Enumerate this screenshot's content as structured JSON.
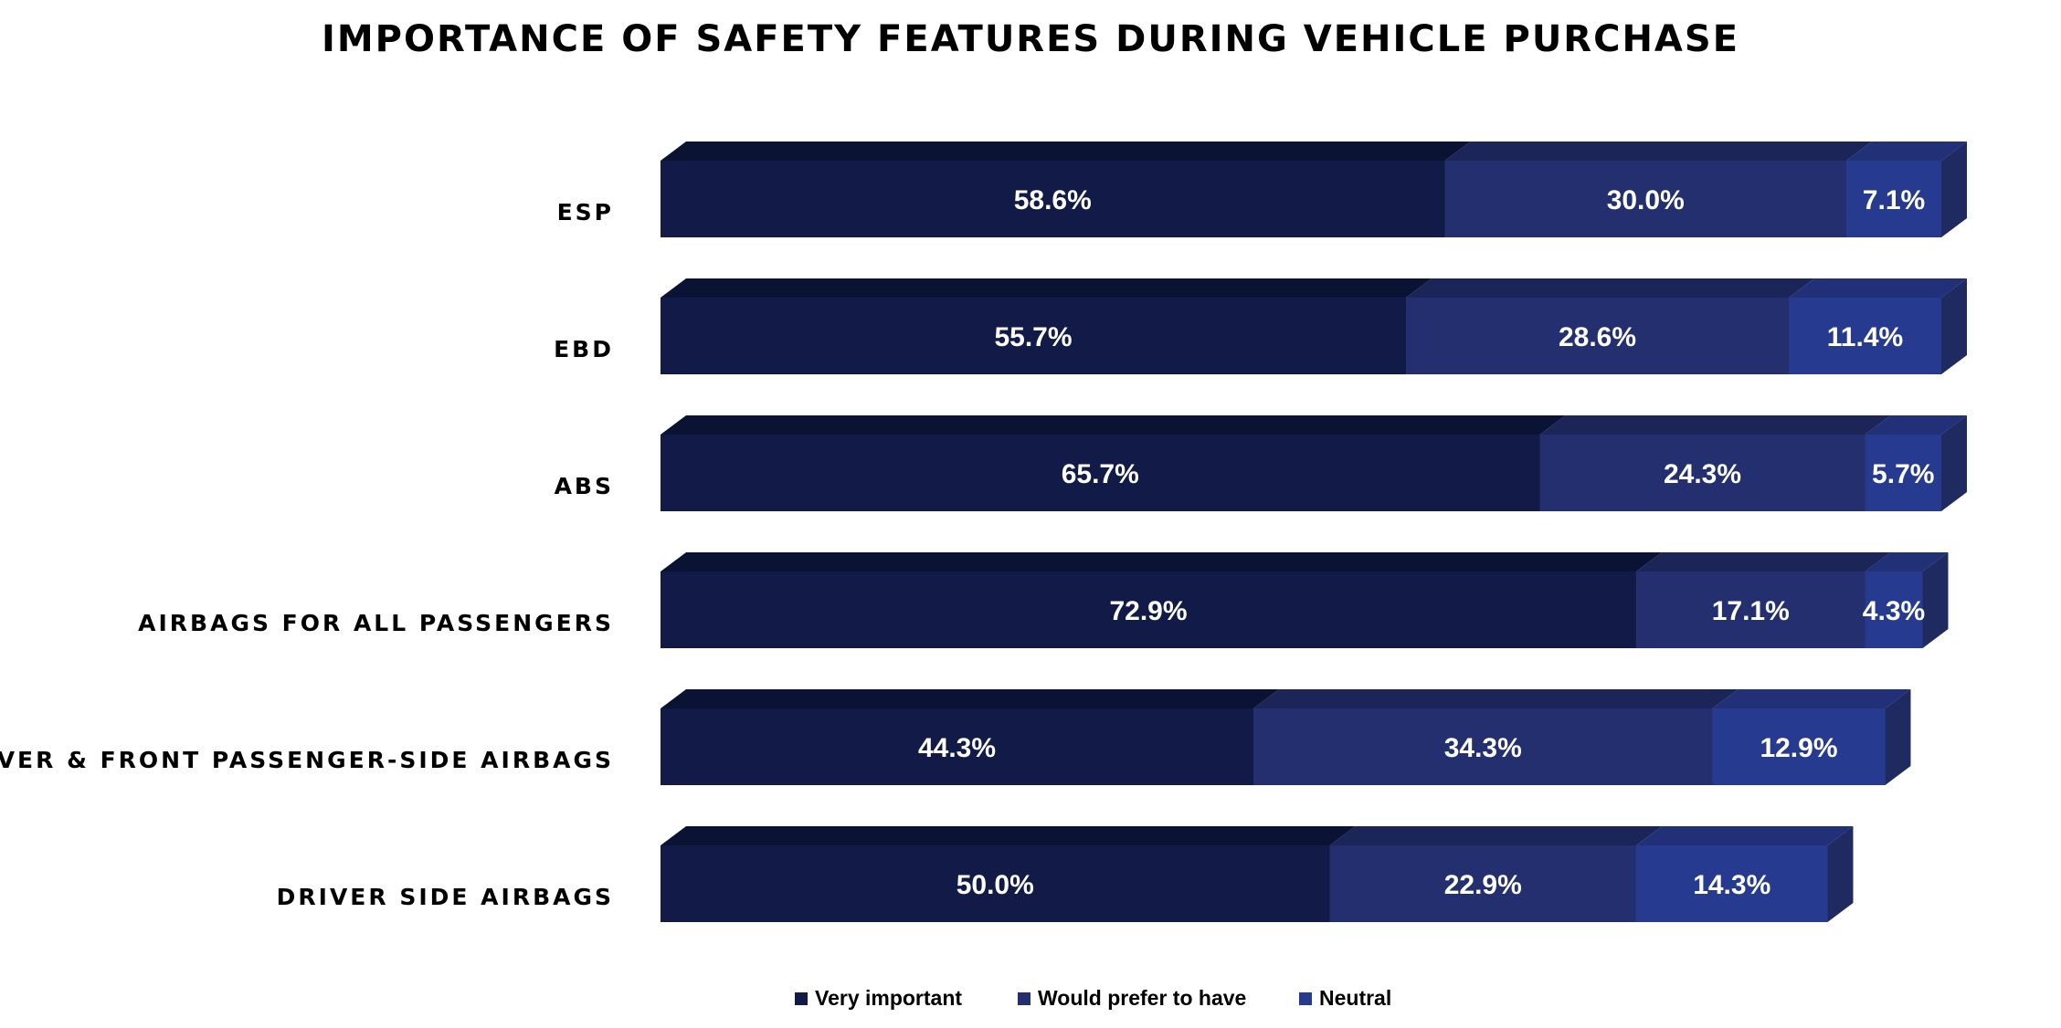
{
  "chart_data": {
    "type": "bar",
    "orientation": "horizontal",
    "stacked": true,
    "title": "IMPORTANCE OF SAFETY FEATURES DURING VEHICLE PURCHASE",
    "categories": [
      "ESP",
      "EBD",
      "ABS",
      "AIRBAGS FOR ALL PASSENGERS",
      "DRIVER & FRONT PASSENGER-SIDE AIRBAGS",
      "DRIVER SIDE AIRBAGS"
    ],
    "series": [
      {
        "name": "Very important",
        "values": [
          58.6,
          55.7,
          65.7,
          72.9,
          44.3,
          50.0
        ],
        "labels": [
          "58.6%",
          "55.7%",
          "65.7%",
          "72.9%",
          "44.3%",
          "50.0%"
        ]
      },
      {
        "name": "Would prefer to have",
        "values": [
          30.0,
          28.6,
          24.3,
          17.1,
          34.3,
          22.9
        ],
        "labels": [
          "30.0%",
          "28.6%",
          "24.3%",
          "17.1%",
          "34.3%",
          "22.9%"
        ]
      },
      {
        "name": "Neutral",
        "values": [
          7.1,
          11.4,
          5.7,
          4.3,
          12.9,
          14.3
        ],
        "labels": [
          "7.1%",
          "11.4%",
          "5.7%",
          "4.3%",
          "12.9%",
          "14.3%"
        ]
      }
    ],
    "xlim": [
      0,
      100
    ],
    "grid": false,
    "legend_position": "bottom",
    "colors": {
      "front": [
        "#121a47",
        "#232f6f",
        "#263b8f"
      ],
      "top": [
        "#0a1334",
        "#1c2557",
        "#223078"
      ],
      "side": "#1f2a60"
    }
  }
}
